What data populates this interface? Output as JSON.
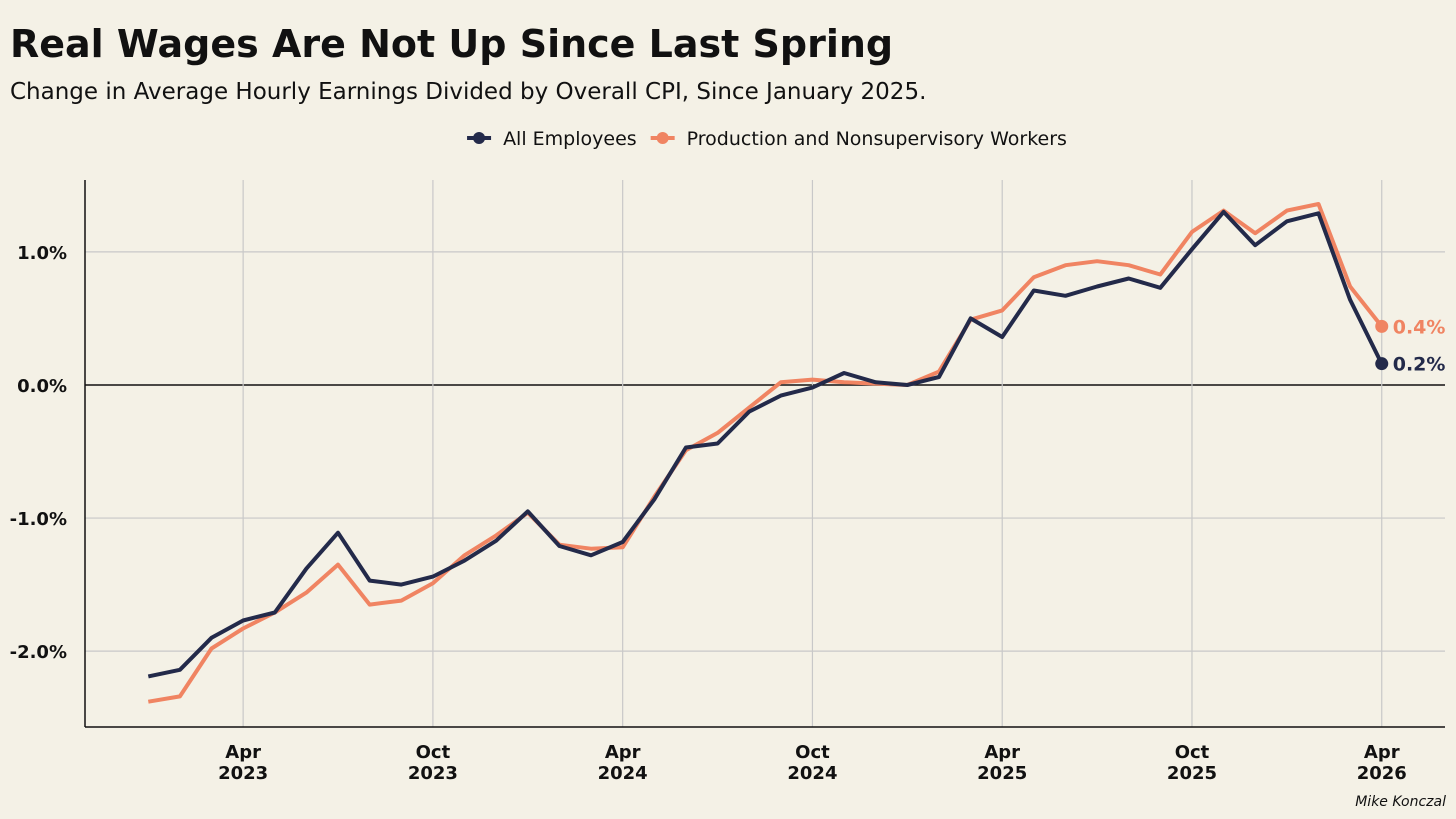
{
  "chart_data": {
    "type": "line",
    "title": "Real Wages Are Not Up Since Last Spring",
    "subtitle": "Change in Average Hourly Earnings Divided by Overall CPI, Since January 2025.",
    "credit": "Mike Konczal",
    "x": [
      "2023-01",
      "2023-02",
      "2023-03",
      "2023-04",
      "2023-05",
      "2023-06",
      "2023-07",
      "2023-08",
      "2023-09",
      "2023-10",
      "2023-11",
      "2023-12",
      "2024-01",
      "2024-02",
      "2024-03",
      "2024-04",
      "2024-05",
      "2024-06",
      "2024-07",
      "2024-08",
      "2024-09",
      "2024-10",
      "2024-11",
      "2024-12",
      "2025-01",
      "2025-02",
      "2025-03",
      "2025-04",
      "2025-05",
      "2025-06",
      "2025-07",
      "2025-08",
      "2025-09",
      "2025-10",
      "2025-11",
      "2025-12",
      "2026-01",
      "2026-02",
      "2026-03",
      "2026-04"
    ],
    "series": [
      {
        "name": "All Employees",
        "color": "#232a4a",
        "values": [
          -2.19,
          -2.14,
          -1.9,
          -1.77,
          -1.71,
          -1.38,
          -1.11,
          -1.47,
          -1.5,
          -1.44,
          -1.32,
          -1.17,
          -0.95,
          -1.21,
          -1.28,
          -1.18,
          -0.86,
          -0.47,
          -0.44,
          -0.2,
          -0.08,
          -0.02,
          0.09,
          0.02,
          0.0,
          0.06,
          0.5,
          0.36,
          0.71,
          0.67,
          0.74,
          0.8,
          0.73,
          1.02,
          1.3,
          1.05,
          1.23,
          1.29,
          0.64,
          0.16
        ],
        "value_labels": [
          null,
          null,
          null,
          null,
          null,
          null,
          null,
          null,
          null,
          null,
          null,
          null,
          null,
          null,
          null,
          null,
          null,
          null,
          null,
          null,
          null,
          null,
          null,
          null,
          null,
          null,
          null,
          null,
          null,
          null,
          null,
          null,
          null,
          null,
          null,
          null,
          null,
          null,
          null,
          "0.2%"
        ]
      },
      {
        "name": "Production and Nonsupervisory Workers",
        "color": "#f08462",
        "values": [
          -2.38,
          -2.34,
          -1.98,
          -1.83,
          -1.71,
          -1.56,
          -1.35,
          -1.65,
          -1.62,
          -1.49,
          -1.28,
          -1.13,
          -0.96,
          -1.2,
          -1.23,
          -1.22,
          -0.84,
          -0.49,
          -0.36,
          -0.17,
          0.02,
          0.04,
          0.02,
          0.01,
          0.0,
          0.1,
          0.49,
          0.56,
          0.81,
          0.9,
          0.93,
          0.9,
          0.83,
          1.15,
          1.31,
          1.14,
          1.31,
          1.36,
          0.74,
          0.44
        ],
        "value_labels": [
          null,
          null,
          null,
          null,
          null,
          null,
          null,
          null,
          null,
          null,
          null,
          null,
          null,
          null,
          null,
          null,
          null,
          null,
          null,
          null,
          null,
          null,
          null,
          null,
          null,
          null,
          null,
          null,
          null,
          null,
          null,
          null,
          null,
          null,
          null,
          null,
          null,
          null,
          null,
          "0.4%"
        ]
      }
    ],
    "xlim": [
      "2022-11",
      "2026-06"
    ],
    "xticks": [
      {
        "value": "2023-04",
        "label": "Apr 2023"
      },
      {
        "value": "2023-10",
        "label": "Oct 2023"
      },
      {
        "value": "2024-04",
        "label": "Apr 2024"
      },
      {
        "value": "2024-10",
        "label": "Oct 2024"
      },
      {
        "value": "2025-04",
        "label": "Apr 2025"
      },
      {
        "value": "2025-10",
        "label": "Oct 2025"
      },
      {
        "value": "2026-04",
        "label": "Apr 2026"
      }
    ],
    "ylim": [
      -2.57,
      1.54
    ],
    "yticks": [
      {
        "value": -2,
        "label": "-2.0%"
      },
      {
        "value": -1,
        "label": "-1.0%"
      },
      {
        "value": 0,
        "label": "0.0%"
      },
      {
        "value": 1,
        "label": "1.0%"
      }
    ],
    "grid": true,
    "legend": "top"
  }
}
